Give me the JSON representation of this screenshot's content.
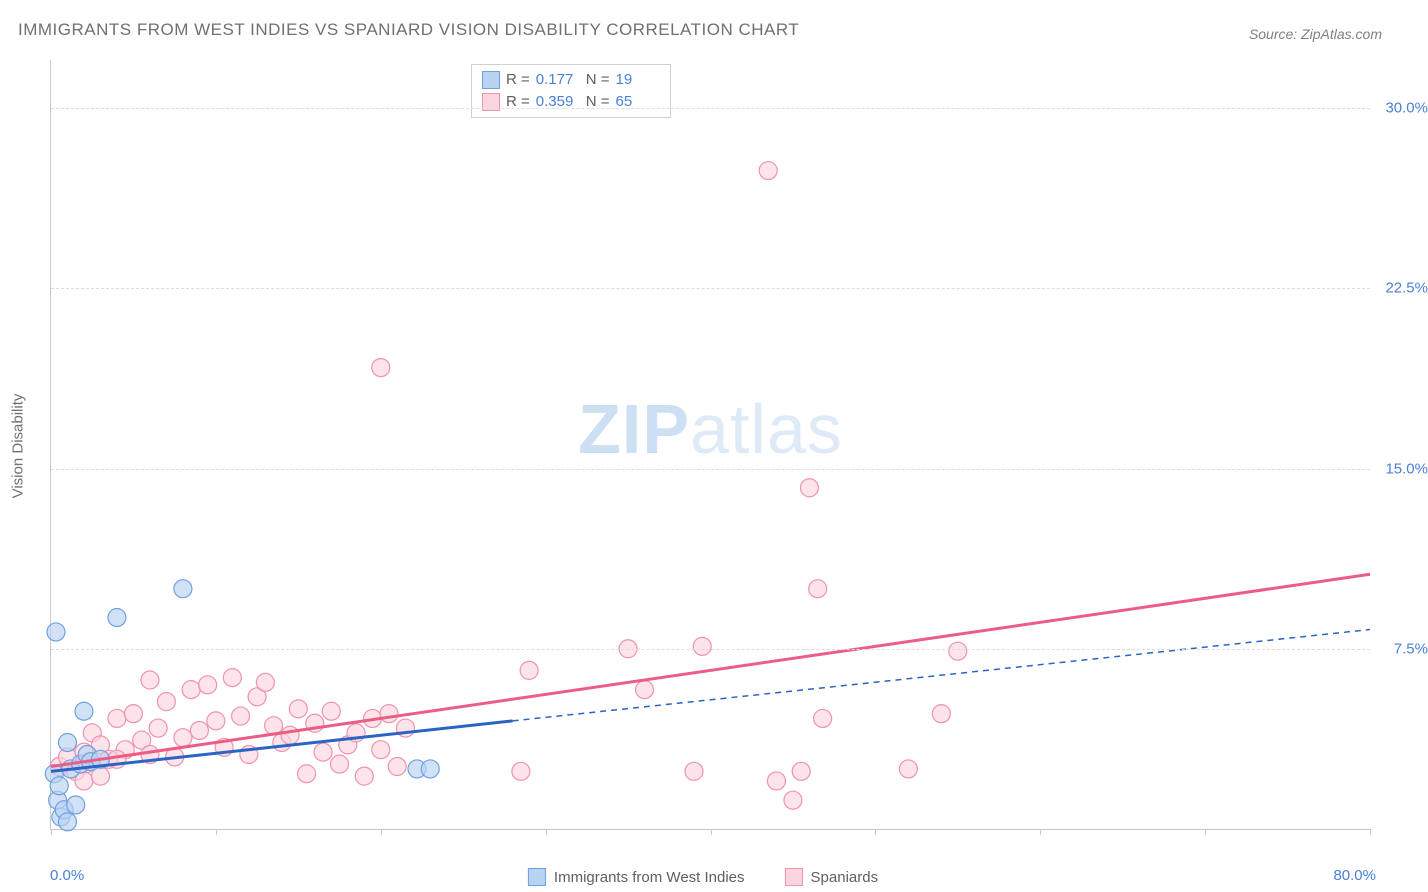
{
  "title": "IMMIGRANTS FROM WEST INDIES VS SPANIARD VISION DISABILITY CORRELATION CHART",
  "source": "Source: ZipAtlas.com",
  "watermark_a": "ZIP",
  "watermark_b": "atlas",
  "y_axis_title": "Vision Disability",
  "x_axis": {
    "min": 0.0,
    "max": 80.0,
    "label_min": "0.0%",
    "label_max": "80.0%",
    "tick_positions": [
      0,
      10,
      20,
      30,
      40,
      50,
      60,
      70,
      80
    ]
  },
  "y_axis": {
    "min": 0.0,
    "max": 32.0,
    "ticks": [
      7.5,
      15.0,
      22.5,
      30.0
    ],
    "tick_labels": [
      "7.5%",
      "15.0%",
      "22.5%",
      "30.0%"
    ]
  },
  "series": {
    "blue": {
      "label": "Immigrants from West Indies",
      "fill": "#b9d3f2",
      "stroke": "#6fa0e0",
      "R": "0.177",
      "N": "19",
      "points": [
        [
          0.2,
          2.3
        ],
        [
          0.4,
          1.2
        ],
        [
          0.6,
          0.5
        ],
        [
          0.8,
          0.8
        ],
        [
          1.0,
          0.3
        ],
        [
          1.2,
          2.5
        ],
        [
          1.5,
          1.0
        ],
        [
          1.8,
          2.7
        ],
        [
          2.0,
          4.9
        ],
        [
          2.2,
          3.1
        ],
        [
          2.4,
          2.8
        ],
        [
          0.3,
          8.2
        ],
        [
          4.0,
          8.8
        ],
        [
          8.0,
          10.0
        ],
        [
          1.0,
          3.6
        ],
        [
          22.2,
          2.5
        ],
        [
          23.0,
          2.5
        ],
        [
          0.5,
          1.8
        ],
        [
          3.0,
          2.9
        ]
      ],
      "trend": {
        "x1": 0,
        "y1": 2.4,
        "x2": 28,
        "y2": 4.5,
        "dash_x2": 80,
        "dash_y2": 8.3
      }
    },
    "pink": {
      "label": "Spaniards",
      "fill": "#fcd5df",
      "stroke": "#f093ac",
      "R": "0.359",
      "N": "65",
      "points": [
        [
          0.5,
          2.6
        ],
        [
          1.0,
          3.0
        ],
        [
          1.5,
          2.4
        ],
        [
          2.0,
          3.2
        ],
        [
          2.1,
          2.7
        ],
        [
          2.5,
          4.0
        ],
        [
          3.0,
          3.5
        ],
        [
          3.5,
          2.9
        ],
        [
          4.0,
          4.6
        ],
        [
          4.5,
          3.3
        ],
        [
          5.0,
          4.8
        ],
        [
          5.5,
          3.7
        ],
        [
          6.0,
          6.2
        ],
        [
          6.5,
          4.2
        ],
        [
          7.0,
          5.3
        ],
        [
          7.5,
          3.0
        ],
        [
          8.0,
          3.8
        ],
        [
          8.5,
          5.8
        ],
        [
          9.0,
          4.1
        ],
        [
          9.5,
          6.0
        ],
        [
          10.0,
          4.5
        ],
        [
          10.5,
          3.4
        ],
        [
          11.0,
          6.3
        ],
        [
          11.5,
          4.7
        ],
        [
          12.0,
          3.1
        ],
        [
          12.5,
          5.5
        ],
        [
          13.0,
          6.1
        ],
        [
          13.5,
          4.3
        ],
        [
          14.0,
          3.6
        ],
        [
          14.5,
          3.9
        ],
        [
          15.0,
          5.0
        ],
        [
          15.5,
          2.3
        ],
        [
          16.0,
          4.4
        ],
        [
          16.5,
          3.2
        ],
        [
          17.0,
          4.9
        ],
        [
          17.5,
          2.7
        ],
        [
          18.0,
          3.5
        ],
        [
          18.5,
          4.0
        ],
        [
          19.0,
          2.2
        ],
        [
          19.5,
          4.6
        ],
        [
          20.0,
          3.3
        ],
        [
          20.5,
          4.8
        ],
        [
          21.0,
          2.6
        ],
        [
          21.5,
          4.2
        ],
        [
          20.0,
          19.2
        ],
        [
          29.0,
          6.6
        ],
        [
          28.5,
          2.4
        ],
        [
          35.0,
          7.5
        ],
        [
          36.0,
          5.8
        ],
        [
          39.0,
          2.4
        ],
        [
          39.5,
          7.6
        ],
        [
          43.5,
          27.4
        ],
        [
          44.0,
          2.0
        ],
        [
          45.0,
          1.2
        ],
        [
          45.5,
          2.4
        ],
        [
          46.0,
          14.2
        ],
        [
          46.5,
          10.0
        ],
        [
          46.8,
          4.6
        ],
        [
          54.0,
          4.8
        ],
        [
          55.0,
          7.4
        ],
        [
          52.0,
          2.5
        ],
        [
          2.0,
          2.0
        ],
        [
          3.0,
          2.2
        ],
        [
          4.0,
          2.9
        ],
        [
          6.0,
          3.1
        ]
      ],
      "trend": {
        "x1": 0,
        "y1": 2.6,
        "x2": 80,
        "y2": 10.6
      }
    }
  },
  "marker_radius": 9,
  "colors": {
    "axis_text": "#4a80d6",
    "blue_line": "#2a64c4",
    "pink_line": "#ec5d85"
  },
  "legend_labels": {
    "R": "R =",
    "N": "N ="
  }
}
